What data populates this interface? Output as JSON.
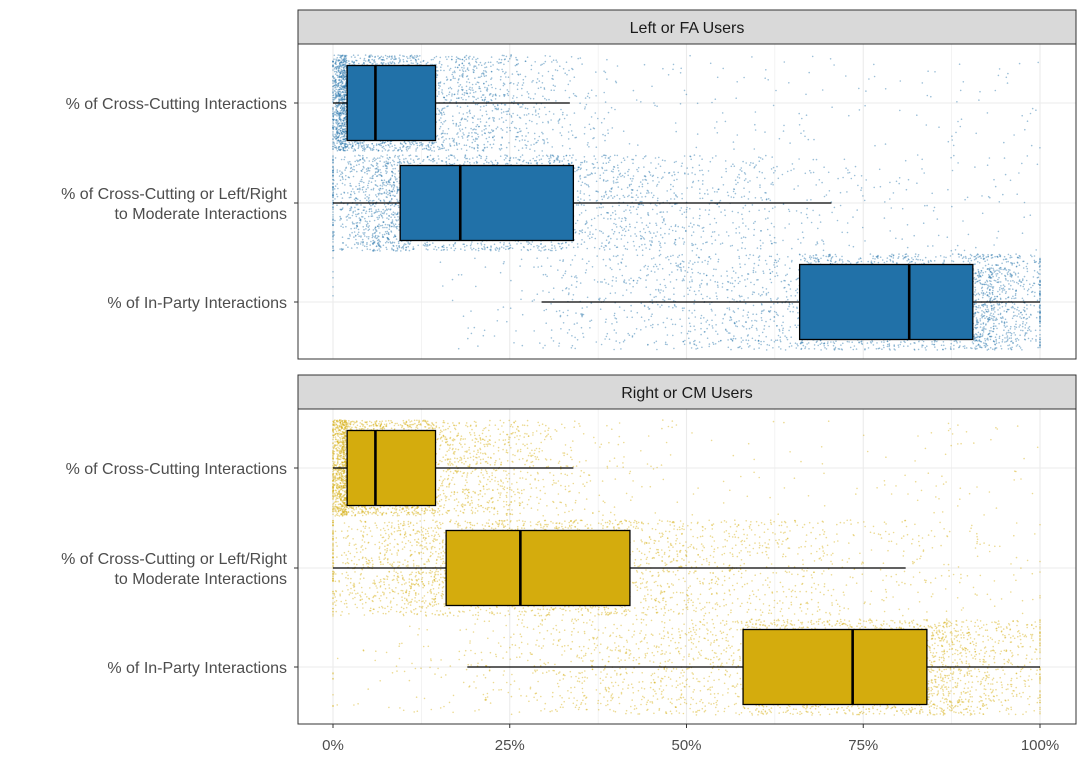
{
  "chart_data": {
    "type": "boxplot",
    "x_axis": {
      "range": [
        0,
        100
      ],
      "ticks": [
        0,
        25,
        50,
        75,
        100
      ],
      "tick_labels": [
        "0%",
        "25%",
        "50%",
        "75%",
        "100%"
      ],
      "label": ""
    },
    "grid": true,
    "jittered_points": true,
    "categories": [
      "% of Cross-Cutting Interactions",
      "% of Cross-Cutting or Left/Right\nto Moderate Interactions",
      "% of In-Party Interactions"
    ],
    "panels": [
      {
        "title": "Left or FA Users",
        "color": "#2171a8",
        "boxes": [
          {
            "category": "% of Cross-Cutting Interactions",
            "whisker_low": 0,
            "q1": 2,
            "median": 6,
            "q3": 14.5,
            "whisker_high": 33.5
          },
          {
            "category": "% of Cross-Cutting or Left/Right\nto Moderate Interactions",
            "whisker_low": 0,
            "q1": 9.5,
            "median": 18,
            "q3": 34,
            "whisker_high": 70.5
          },
          {
            "category": "% of In-Party Interactions",
            "whisker_low": 29.5,
            "q1": 66,
            "median": 81.5,
            "q3": 90.5,
            "whisker_high": 100
          }
        ]
      },
      {
        "title": "Right or CM Users",
        "color": "#d4ac0d",
        "boxes": [
          {
            "category": "% of Cross-Cutting Interactions",
            "whisker_low": 0,
            "q1": 2,
            "median": 6,
            "q3": 14.5,
            "whisker_high": 34
          },
          {
            "category": "% of Cross-Cutting or Left/Right\nto Moderate Interactions",
            "whisker_low": 0,
            "q1": 16,
            "median": 26.5,
            "q3": 42,
            "whisker_high": 81
          },
          {
            "category": "% of In-Party Interactions",
            "whisker_low": 19,
            "q1": 58,
            "median": 73.5,
            "q3": 84,
            "whisker_high": 100
          }
        ]
      }
    ]
  }
}
